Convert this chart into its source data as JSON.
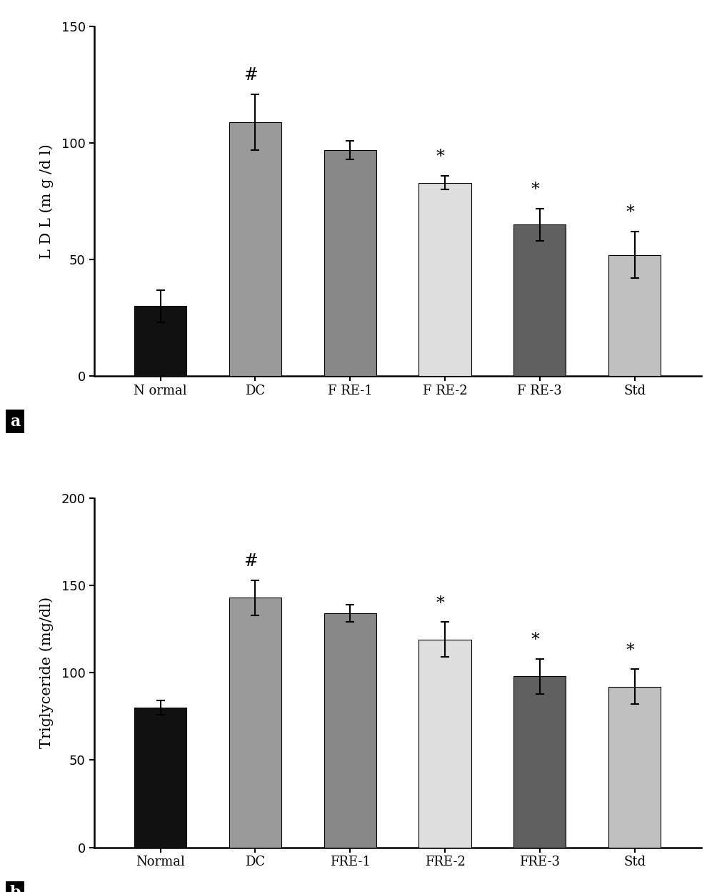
{
  "chart_a": {
    "title": "a",
    "categories": [
      "N ormal",
      "DC",
      "F RE-1",
      "F RE-2",
      "F RE-3",
      "Std"
    ],
    "values": [
      30,
      109,
      97,
      83,
      65,
      52
    ],
    "errors": [
      7,
      12,
      4,
      3,
      7,
      10
    ],
    "bar_colors": [
      "#111111",
      "#9a9a9a",
      "#888888",
      "#dedede",
      "#606060",
      "#c0c0c0"
    ],
    "ylabel": "L D L (m g /d l)",
    "ylim": [
      0,
      150
    ],
    "yticks": [
      0,
      50,
      100,
      150
    ],
    "annotations": {
      "DC": "#",
      "F RE-2": "*",
      "F RE-3": "*",
      "Std": "*"
    },
    "annot_indices": [
      1,
      3,
      4,
      5
    ]
  },
  "chart_b": {
    "title": "b",
    "categories": [
      "Normal",
      "DC",
      "FRE-1",
      "FRE-2",
      "FRE-3",
      "Std"
    ],
    "values": [
      80,
      143,
      134,
      119,
      98,
      92
    ],
    "errors": [
      4,
      10,
      5,
      10,
      10,
      10
    ],
    "bar_colors": [
      "#111111",
      "#9a9a9a",
      "#888888",
      "#dedede",
      "#606060",
      "#c0c0c0"
    ],
    "ylabel": "Triglyceride (mg/dl)",
    "ylim": [
      0,
      200
    ],
    "yticks": [
      0,
      50,
      100,
      150,
      200
    ],
    "annotations": {
      "DC": "#",
      "FRE-2": "*",
      "FRE-3": "*",
      "Std": "*"
    },
    "annot_indices": [
      1,
      3,
      4,
      5
    ]
  },
  "background_color": "#ffffff",
  "border_color": "#000000",
  "label_fontsize": 15,
  "tick_fontsize": 13,
  "annotation_fontsize": 17,
  "bar_width": 0.55,
  "capsize": 4
}
